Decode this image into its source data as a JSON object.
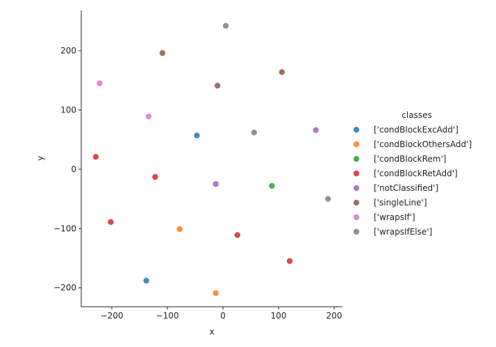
{
  "chart_data": {
    "type": "scatter",
    "xlabel": "x",
    "ylabel": "y",
    "xlim": [
      -255,
      215
    ],
    "ylim": [
      -232,
      268
    ],
    "xticks": [
      -200,
      -100,
      0,
      100,
      200
    ],
    "yticks": [
      -200,
      -100,
      0,
      100,
      200
    ],
    "grid": false,
    "legend": {
      "title": "classes",
      "placement": "right"
    },
    "series": [
      {
        "name": "['condBlockExcAdd']",
        "color": "#1f77b4",
        "points": [
          [
            -47,
            57
          ],
          [
            -138,
            -188
          ]
        ]
      },
      {
        "name": "['condBlockOthersAdd']",
        "color": "#ff7f0e",
        "points": [
          [
            -78,
            -101
          ],
          [
            -13,
            -209
          ]
        ]
      },
      {
        "name": "['condBlockRem']",
        "color": "#2ca02c",
        "points": [
          [
            88,
            -28
          ]
        ]
      },
      {
        "name": "['condBlockRetAdd']",
        "color": "#d62728",
        "points": [
          [
            -229,
            21
          ],
          [
            -122,
            -13
          ],
          [
            -202,
            -89
          ],
          [
            26,
            -111
          ],
          [
            120,
            -155
          ]
        ]
      },
      {
        "name": "['notClassified']",
        "color": "#9467bd",
        "points": [
          [
            -13,
            -25
          ],
          [
            167,
            66
          ]
        ]
      },
      {
        "name": "['singleLine']",
        "color": "#8c564b",
        "points": [
          [
            -109,
            196
          ],
          [
            -10,
            141
          ],
          [
            106,
            164
          ]
        ]
      },
      {
        "name": "['wrapsIf']",
        "color": "#e377c2",
        "points": [
          [
            -222,
            145
          ],
          [
            -134,
            89
          ]
        ]
      },
      {
        "name": "['wrapsIfElse']",
        "color": "#7f7f7f",
        "points": [
          [
            5,
            242
          ],
          [
            56,
            62
          ],
          [
            189,
            -50
          ]
        ]
      }
    ]
  }
}
